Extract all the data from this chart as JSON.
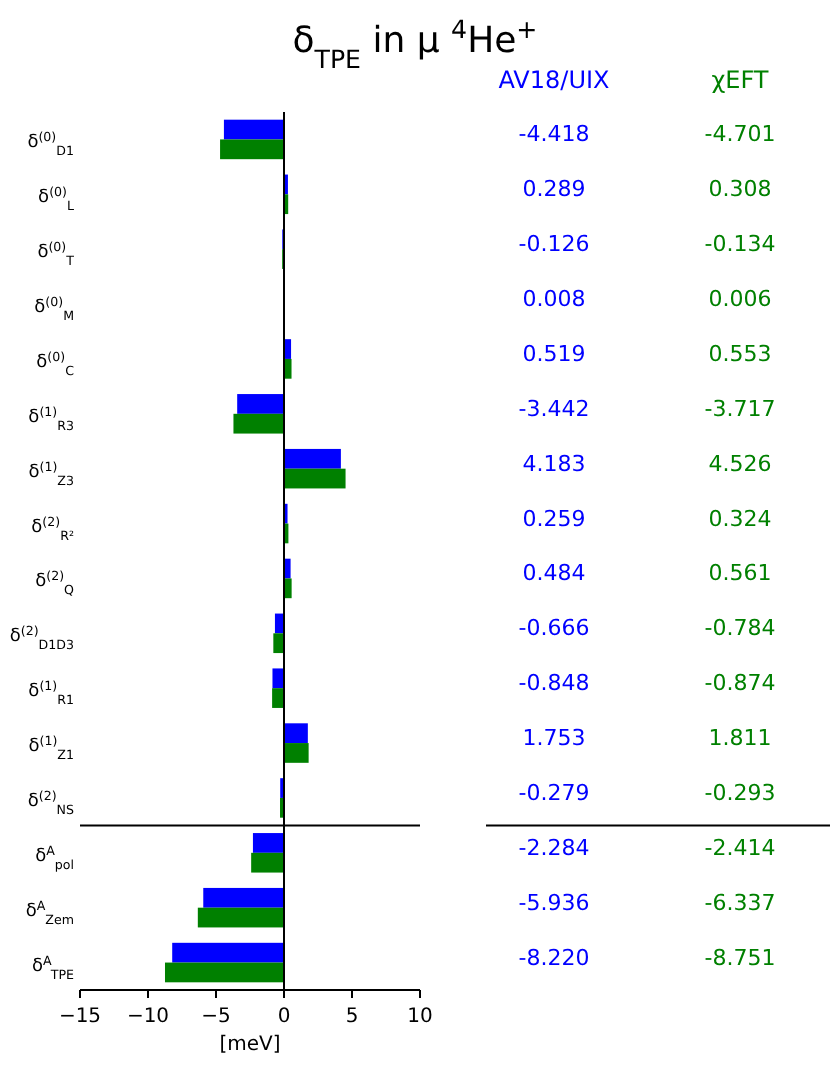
{
  "chart_data": {
    "type": "bar",
    "orientation": "horizontal",
    "title": "δ$_{TPE}$ in μ $^{4}$He$^{+}$",
    "xlabel": "[meV]",
    "categories": [
      "δ$^{(0)}$$_{D1}$",
      "δ$^{(0)}$$_{L}$",
      "δ$^{(0)}$$_{T}$",
      "δ$^{(0)}$$_{M}$",
      "δ$^{(0)}$$_{C}$",
      "δ$^{(1)}$$_{R3}$",
      "δ$^{(1)}$$_{Z3}$",
      "δ$^{(2)}$$_{R²}$",
      "δ$^{(2)}$$_{Q}$",
      "δ$^{(2)}$$_{D1D3}$",
      "δ$^{(1)}$$_{R1}$",
      "δ$^{(1)}$$_{Z1}$",
      "δ$^{(2)}$$_{NS}$",
      "δ$^{A}$$_{pol}$",
      "δ$^{A}$$_{Zem}$",
      "δ$^{A}$$_{TPE}$"
    ],
    "series": [
      {
        "name": "AV18/UIX",
        "color": "#0000ff",
        "values": [
          -4.418,
          0.289,
          -0.126,
          0.008,
          0.519,
          -3.442,
          4.183,
          0.259,
          0.484,
          -0.666,
          -0.848,
          1.753,
          -0.279,
          -2.284,
          -5.936,
          -8.22
        ],
        "value_labels": [
          "-4.418",
          "0.289",
          "-0.126",
          "0.008",
          "0.519",
          "-3.442",
          "4.183",
          "0.259",
          "0.484",
          "-0.666",
          "-0.848",
          "1.753",
          "-0.279",
          "-2.284",
          "-5.936",
          "-8.220"
        ]
      },
      {
        "name": "χEFT",
        "color": "#008000",
        "values": [
          -4.701,
          0.308,
          -0.134,
          0.006,
          0.553,
          -3.717,
          4.526,
          0.324,
          0.561,
          -0.784,
          -0.874,
          1.811,
          -0.293,
          -2.414,
          -6.337,
          -8.751
        ],
        "value_labels": [
          "-4.701",
          "0.308",
          "-0.134",
          "0.006",
          "0.553",
          "-3.717",
          "4.526",
          "0.324",
          "0.561",
          "-0.784",
          "-0.874",
          "1.811",
          "-0.293",
          "-2.414",
          "-6.337",
          "-8.751"
        ]
      }
    ],
    "xlim": [
      -15,
      10
    ],
    "xticks": [
      {
        "value": -15,
        "label": "−15"
      },
      {
        "value": -10,
        "label": "−10"
      },
      {
        "value": -5,
        "label": "−5"
      },
      0,
      5,
      10
    ],
    "ref_lines": [
      {
        "axis": "x",
        "value": 0,
        "color": "#000000"
      }
    ],
    "legend": "top right"
  }
}
